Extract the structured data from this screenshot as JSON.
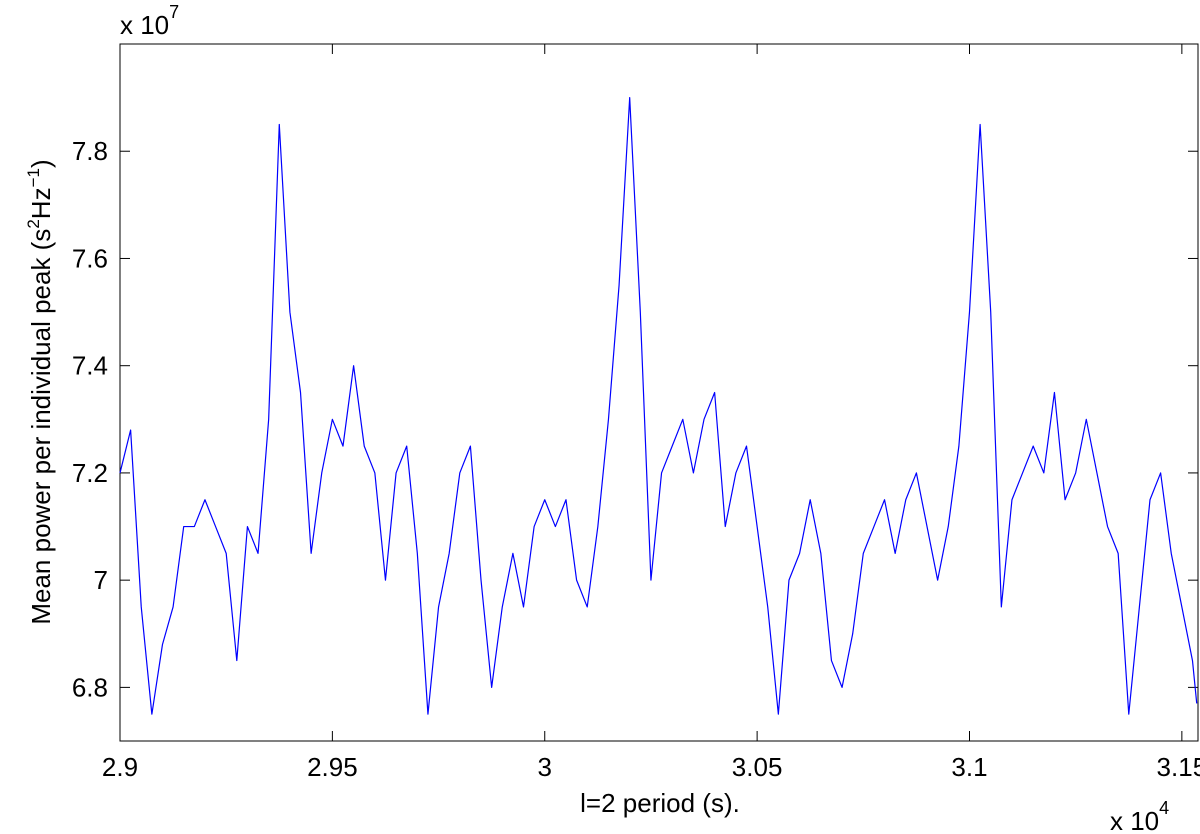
{
  "chart_data": {
    "type": "line",
    "xlabel": "l=2 period (s).",
    "ylabel": [
      "Mean power per individual peak (s",
      "2",
      "Hz",
      "−1",
      ")"
    ],
    "x_multiplier": {
      "text": "x 10",
      "power": "4"
    },
    "y_multiplier": {
      "text": "x 10",
      "power": "7"
    },
    "xlim": [
      29000,
      31538
    ],
    "ylim": [
      67000000,
      80000000
    ],
    "xticks": [
      {
        "value": 29000,
        "label": "2.9"
      },
      {
        "value": 29500,
        "label": "2.95"
      },
      {
        "value": 30000,
        "label": "3"
      },
      {
        "value": 30500,
        "label": "3.05"
      },
      {
        "value": 31000,
        "label": "3.1"
      },
      {
        "value": 31500,
        "label": "3.15"
      }
    ],
    "yticks": [
      {
        "value": 68000000,
        "label": "6.8"
      },
      {
        "value": 70000000,
        "label": "7"
      },
      {
        "value": 72000000,
        "label": "7.2"
      },
      {
        "value": 74000000,
        "label": "7.4"
      },
      {
        "value": 76000000,
        "label": "7.6"
      },
      {
        "value": 78000000,
        "label": "7.8"
      }
    ],
    "grid": false,
    "x": [
      29000,
      29025,
      29050,
      29075,
      29100,
      29125,
      29150,
      29175,
      29200,
      29225,
      29250,
      29275,
      29300,
      29325,
      29350,
      29375,
      29400,
      29425,
      29450,
      29475,
      29500,
      29525,
      29550,
      29575,
      29600,
      29625,
      29650,
      29675,
      29700,
      29725,
      29750,
      29775,
      29800,
      29825,
      29850,
      29875,
      29900,
      29925,
      29950,
      29975,
      30000,
      30025,
      30050,
      30075,
      30100,
      30125,
      30150,
      30175,
      30200,
      30225,
      30250,
      30275,
      30300,
      30325,
      30350,
      30375,
      30400,
      30425,
      30450,
      30475,
      30500,
      30525,
      30550,
      30575,
      30600,
      30625,
      30650,
      30675,
      30700,
      30725,
      30750,
      30775,
      30800,
      30825,
      30850,
      30875,
      30900,
      30925,
      30950,
      30975,
      31000,
      31025,
      31050,
      31075,
      31100,
      31125,
      31150,
      31175,
      31200,
      31225,
      31250,
      31275,
      31300,
      31325,
      31350,
      31375,
      31400,
      31425,
      31450,
      31475,
      31500,
      31525,
      31535
    ],
    "series": [
      {
        "name": "mean power",
        "color": "#0000ff",
        "values": [
          72000000,
          72800000,
          69500000,
          67500000,
          68800000,
          69500000,
          71000000,
          71000000,
          71500000,
          71000000,
          70500000,
          68500000,
          71000000,
          70500000,
          73000000,
          78500000,
          75000000,
          73500000,
          70500000,
          72000000,
          73000000,
          72500000,
          74000000,
          72500000,
          72000000,
          70000000,
          72000000,
          72500000,
          70500000,
          67500000,
          69500000,
          70500000,
          72000000,
          72500000,
          70000000,
          68000000,
          69500000,
          70500000,
          69500000,
          71000000,
          71500000,
          71000000,
          71500000,
          70000000,
          69500000,
          71000000,
          73000000,
          75500000,
          79000000,
          75000000,
          70000000,
          72000000,
          72500000,
          73000000,
          72000000,
          73000000,
          73500000,
          71000000,
          72000000,
          72500000,
          71000000,
          69500000,
          67500000,
          70000000,
          70500000,
          71500000,
          70500000,
          68500000,
          68000000,
          69000000,
          70500000,
          71000000,
          71500000,
          70500000,
          71500000,
          72000000,
          71000000,
          70000000,
          71000000,
          72500000,
          75000000,
          78500000,
          75000000,
          69500000,
          71500000,
          72000000,
          72500000,
          72000000,
          73500000,
          71500000,
          72000000,
          73000000,
          72000000,
          71000000,
          70500000,
          67500000,
          69500000,
          71500000,
          72000000,
          70500000,
          69500000,
          68500000,
          67700000
        ]
      }
    ]
  }
}
